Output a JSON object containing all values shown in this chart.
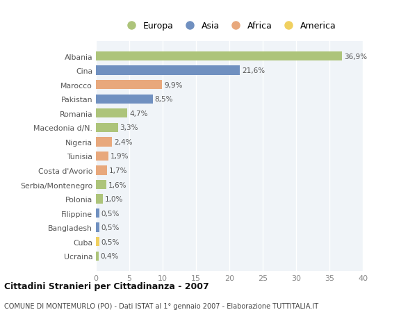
{
  "countries": [
    "Albania",
    "Cina",
    "Marocco",
    "Pakistan",
    "Romania",
    "Macedonia d/N.",
    "Nigeria",
    "Tunisia",
    "Costa d'Avorio",
    "Serbia/Montenegro",
    "Polonia",
    "Filippine",
    "Bangladesh",
    "Cuba",
    "Ucraina"
  ],
  "values": [
    36.9,
    21.6,
    9.9,
    8.5,
    4.7,
    3.3,
    2.4,
    1.9,
    1.7,
    1.6,
    1.0,
    0.5,
    0.5,
    0.5,
    0.4
  ],
  "labels": [
    "36,9%",
    "21,6%",
    "9,9%",
    "8,5%",
    "4,7%",
    "3,3%",
    "2,4%",
    "1,9%",
    "1,7%",
    "1,6%",
    "1,0%",
    "0,5%",
    "0,5%",
    "0,5%",
    "0,4%"
  ],
  "continents": [
    "Europa",
    "Asia",
    "Africa",
    "Asia",
    "Europa",
    "Europa",
    "Africa",
    "Africa",
    "Africa",
    "Europa",
    "Europa",
    "Asia",
    "Asia",
    "America",
    "Europa"
  ],
  "continent_colors": {
    "Europa": "#adc47a",
    "Asia": "#7090c0",
    "Africa": "#e8a87c",
    "America": "#f0d060"
  },
  "legend_order": [
    "Europa",
    "Asia",
    "Africa",
    "America"
  ],
  "title": "Cittadini Stranieri per Cittadinanza - 2007",
  "subtitle": "COMUNE DI MONTEMURLO (PO) - Dati ISTAT al 1° gennaio 2007 - Elaborazione TUTTITALIA.IT",
  "xlim": [
    0,
    40
  ],
  "xticks": [
    0,
    5,
    10,
    15,
    20,
    25,
    30,
    35,
    40
  ],
  "background_color": "#ffffff",
  "plot_bg_color": "#f0f4f8",
  "grid_color": "#ffffff",
  "bar_height": 0.65
}
